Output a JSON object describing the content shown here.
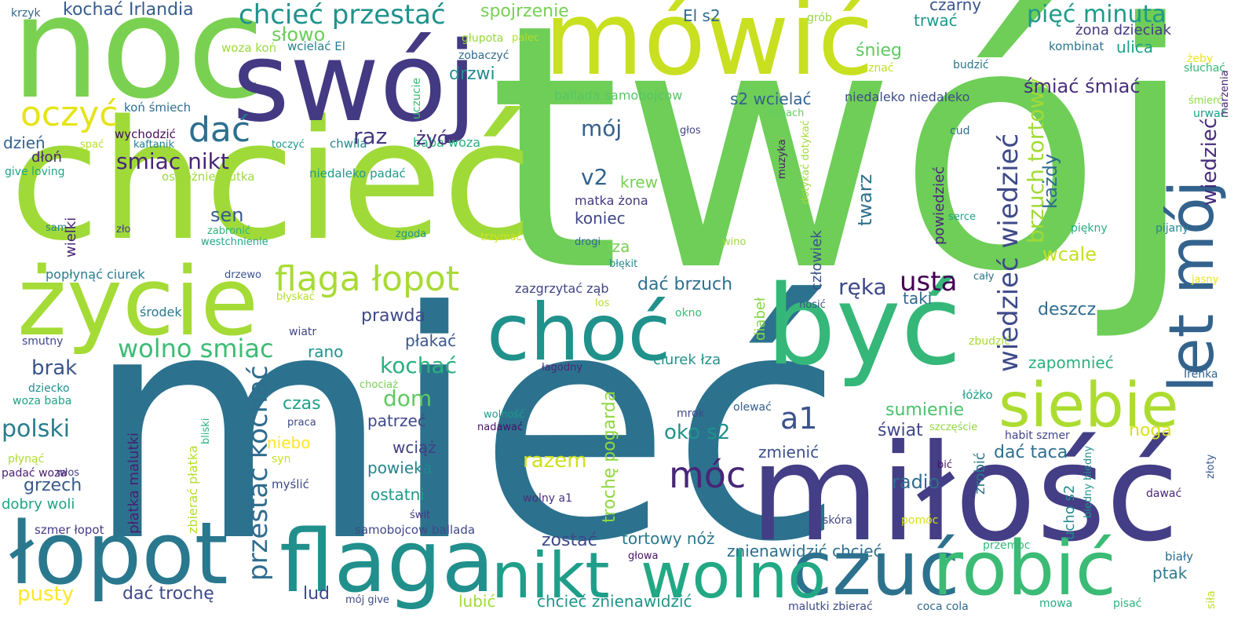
{
  "words": [
    {
      "text": "twój",
      "color": "#6ece58"
    },
    {
      "text": "mieć",
      "color": "#2c728e"
    },
    {
      "text": "chcieć",
      "color": "#a0da39"
    },
    {
      "text": "miłość",
      "color": "#433e85"
    },
    {
      "text": "noc",
      "color": "#7ad151"
    },
    {
      "text": "swój",
      "color": "#443983"
    },
    {
      "text": "mówić",
      "color": "#c8e020"
    },
    {
      "text": "być",
      "color": "#35b779"
    },
    {
      "text": "życie",
      "color": "#a5db36"
    },
    {
      "text": "łopot",
      "color": "#2a788e"
    },
    {
      "text": "flaga",
      "color": "#21908d"
    },
    {
      "text": "choć",
      "color": "#21918c"
    },
    {
      "text": "czuć",
      "color": "#2c728e"
    },
    {
      "text": "robić",
      "color": "#3bbb75"
    },
    {
      "text": "nikt",
      "color": "#1f9e89"
    },
    {
      "text": "wolno",
      "color": "#22a884"
    },
    {
      "text": "siebie",
      "color": "#addc30"
    },
    {
      "text": "let mój",
      "color": "#33638d"
    },
    {
      "text": "flaga łopot",
      "color": "#a8db34"
    },
    {
      "text": "przestać kochać",
      "color": "#2f6c8e"
    },
    {
      "text": "oczyć",
      "color": "#e5e419"
    },
    {
      "text": "dać",
      "color": "#2d708e"
    },
    {
      "text": "wolno smiac",
      "color": "#3dbc74"
    },
    {
      "text": "wiedzieć wiedzieć",
      "color": "#3e4a89"
    },
    {
      "text": "brzuch tortowy",
      "color": "#a2da37"
    },
    {
      "text": "wiedzieć",
      "color": "#472d7b"
    },
    {
      "text": "pięć minuta",
      "color": "#1f9a8a"
    },
    {
      "text": "chcieć przestać",
      "color": "#20928c"
    },
    {
      "text": "a1",
      "color": "#3b528b"
    },
    {
      "text": "móc",
      "color": "#482677"
    },
    {
      "text": "usta",
      "color": "#440154"
    },
    {
      "text": "polski",
      "color": "#287d8e"
    },
    {
      "text": "kochać Irlandia",
      "color": "#365c8d"
    },
    {
      "text": "słowo",
      "color": "#6ccd5a"
    },
    {
      "text": "spojrzenie",
      "color": "#75d054"
    },
    {
      "text": "El s2",
      "color": "#30698e"
    },
    {
      "text": "grób",
      "color": "#95d840"
    },
    {
      "text": "krzyk",
      "color": "#31668e"
    },
    {
      "text": "czarny",
      "color": "#3a548c"
    },
    {
      "text": "trwać",
      "color": "#1f988b"
    },
    {
      "text": "żona dzieciak",
      "color": "#453882"
    },
    {
      "text": "głupota",
      "color": "#95d840"
    },
    {
      "text": "palec",
      "color": "#b0dd2f"
    },
    {
      "text": "woza koń",
      "color": "#9bd93c"
    },
    {
      "text": "wcielać El",
      "color": "#27808e"
    },
    {
      "text": "zobaczyć",
      "color": "#306a8e"
    },
    {
      "text": "kombinat",
      "color": "#2c738e"
    },
    {
      "text": "żeby",
      "color": "#eae51a"
    },
    {
      "text": "ulica",
      "color": "#1fa088"
    },
    {
      "text": "śnieg",
      "color": "#5ec962"
    },
    {
      "text": "drzwi",
      "color": "#228c8d"
    },
    {
      "text": "budzić",
      "color": "#2a768e"
    },
    {
      "text": "słuchać",
      "color": "#35b779"
    },
    {
      "text": "marzenia",
      "color": "#482173"
    },
    {
      "text": "znać",
      "color": "#c2df23"
    },
    {
      "text": "uczucie",
      "color": "#3bbb75"
    },
    {
      "text": "koń śmiech",
      "color": "#2e6e8e"
    },
    {
      "text": "ballada samobojcow",
      "color": "#56c667"
    },
    {
      "text": "s2 wcielać",
      "color": "#33628d"
    },
    {
      "text": "niedaleko niedaleko",
      "color": "#3e4c8a"
    },
    {
      "text": "śmiać śmiać",
      "color": "#472f7d"
    },
    {
      "text": "śmierć",
      "color": "#90d743"
    },
    {
      "text": "zapach",
      "color": "#63cb5f"
    },
    {
      "text": "urwać",
      "color": "#1e9c89"
    },
    {
      "text": "głos",
      "color": "#404588"
    },
    {
      "text": "wychodzić",
      "color": "#460b5e"
    },
    {
      "text": "kaftanik",
      "color": "#26818e"
    },
    {
      "text": "dzień",
      "color": "#33628d"
    },
    {
      "text": "spać",
      "color": "#b8de29"
    },
    {
      "text": "toczyć",
      "color": "#1f968b"
    },
    {
      "text": "chwila",
      "color": "#25858e"
    },
    {
      "text": "baba woza",
      "color": "#29af7f"
    },
    {
      "text": "dłoń",
      "color": "#482878"
    },
    {
      "text": "smiac nikt",
      "color": "#482475"
    },
    {
      "text": "raz",
      "color": "#453882"
    },
    {
      "text": "żyć",
      "color": "#46327e"
    },
    {
      "text": "mój",
      "color": "#355f8d"
    },
    {
      "text": "v2",
      "color": "#33638d"
    },
    {
      "text": "muzyka",
      "color": "#48186a"
    },
    {
      "text": "cud",
      "color": "#2e6f8e"
    },
    {
      "text": "każdy",
      "color": "#2f6b8e"
    },
    {
      "text": "give loving",
      "color": "#20a486"
    },
    {
      "text": "ostrożnie trutka",
      "color": "#9dd93b"
    },
    {
      "text": "niedaleko padać",
      "color": "#1f998a"
    },
    {
      "text": "krew",
      "color": "#77d153"
    },
    {
      "text": "sen",
      "color": "#365c8d"
    },
    {
      "text": "matka żona",
      "color": "#443a83"
    },
    {
      "text": "twarz",
      "color": "#2d718e"
    },
    {
      "text": "dotykać dotykać",
      "color": "#a0da39"
    },
    {
      "text": "sam",
      "color": "#26828e"
    },
    {
      "text": "zło",
      "color": "#443b84"
    },
    {
      "text": "zabronić",
      "color": "#2db27d"
    },
    {
      "text": "westchnienie",
      "color": "#21a685"
    },
    {
      "text": "zgoda",
      "color": "#1f948c"
    },
    {
      "text": "trzymać",
      "color": "#d2e21b"
    },
    {
      "text": "drogi",
      "color": "#31678e"
    },
    {
      "text": "wino",
      "color": "#9bd93c"
    },
    {
      "text": "serce",
      "color": "#1fa088"
    },
    {
      "text": "piękny",
      "color": "#27ad81"
    },
    {
      "text": "pijany",
      "color": "#25848e"
    },
    {
      "text": "koniec",
      "color": "#3f4788"
    },
    {
      "text": "powiedzieć",
      "color": "#482878"
    },
    {
      "text": "wcale",
      "color": "#c5e021"
    },
    {
      "text": "wielki",
      "color": "#482374"
    },
    {
      "text": "popłynąć ciurek",
      "color": "#287c8e"
    },
    {
      "text": "łza",
      "color": "#77d153"
    },
    {
      "text": "człowiek",
      "color": "#3b528b"
    },
    {
      "text": "błękit",
      "color": "#238a8d"
    },
    {
      "text": "cały",
      "color": "#2c728e"
    },
    {
      "text": "jasny",
      "color": "#e8e419"
    },
    {
      "text": "drzewo",
      "color": "#3b528b"
    },
    {
      "text": "błyskać",
      "color": "#b8de29"
    },
    {
      "text": "zazgrzytać ząb",
      "color": "#404588"
    },
    {
      "text": "dać brzuch",
      "color": "#2d708e"
    },
    {
      "text": "ręka",
      "color": "#3e4989"
    },
    {
      "text": "deszcz",
      "color": "#2e6d8e"
    },
    {
      "text": "taki",
      "color": "#31688e"
    },
    {
      "text": "los",
      "color": "#b5de2b"
    },
    {
      "text": "nosić",
      "color": "#3c508b"
    },
    {
      "text": "środek",
      "color": "#2a778e"
    },
    {
      "text": "prawda",
      "color": "#3e4a89"
    },
    {
      "text": "smutny",
      "color": "#404588"
    },
    {
      "text": "wiatr",
      "color": "#414487"
    },
    {
      "text": "rano",
      "color": "#20928c"
    },
    {
      "text": "płakać",
      "color": "#39568c"
    },
    {
      "text": "okno",
      "color": "#3bbb75"
    },
    {
      "text": "diabeł",
      "color": "#86d549"
    },
    {
      "text": "ciurek łza",
      "color": "#21918c"
    },
    {
      "text": "zbudzić",
      "color": "#a8db34"
    },
    {
      "text": "łagodny",
      "color": "#482878"
    },
    {
      "text": "Irenka",
      "color": "#33628d"
    },
    {
      "text": "brak",
      "color": "#39558c"
    },
    {
      "text": "kochać",
      "color": "#2ab07f"
    },
    {
      "text": "trochę pogarda",
      "color": "#90d743"
    },
    {
      "text": "zapomnieć",
      "color": "#2bb07f"
    },
    {
      "text": "dziecko",
      "color": "#228d8d"
    },
    {
      "text": "chociaż",
      "color": "#75d054"
    },
    {
      "text": "woza baba",
      "color": "#1fa188"
    },
    {
      "text": "dom",
      "color": "#5ec962"
    },
    {
      "text": "łóżko",
      "color": "#1f9e89"
    },
    {
      "text": "czas",
      "color": "#1fa188"
    },
    {
      "text": "olewać",
      "color": "#34608d"
    },
    {
      "text": "płatka malutki",
      "color": "#481f70"
    },
    {
      "text": "bliski",
      "color": "#2db27d"
    },
    {
      "text": "wolność",
      "color": "#1f998a"
    },
    {
      "text": "mrok",
      "color": "#3e4a89"
    },
    {
      "text": "sumienie",
      "color": "#4ac16d"
    },
    {
      "text": "świat",
      "color": "#3f4788"
    },
    {
      "text": "noga",
      "color": "#d8e219"
    },
    {
      "text": "oko s2",
      "color": "#20928c"
    },
    {
      "text": "patrzeć",
      "color": "#3f4889"
    },
    {
      "text": "nadawać",
      "color": "#471164"
    },
    {
      "text": "szczęście",
      "color": "#90d743"
    },
    {
      "text": "habit szmer",
      "color": "#414487"
    },
    {
      "text": "praca",
      "color": "#3e4989"
    },
    {
      "text": "niebo",
      "color": "#fde725"
    },
    {
      "text": "syn",
      "color": "#c8e020"
    },
    {
      "text": "wciąż",
      "color": "#433e85"
    },
    {
      "text": "powieka",
      "color": "#25848e"
    },
    {
      "text": "razem",
      "color": "#cde11d"
    },
    {
      "text": "zmienić",
      "color": "#3c4f8a"
    },
    {
      "text": "dać taca",
      "color": "#2e6e8e"
    },
    {
      "text": "płynąć",
      "color": "#addc30"
    },
    {
      "text": "włos",
      "color": "#424086"
    },
    {
      "text": "padać woza",
      "color": "#481d6f"
    },
    {
      "text": "grzech",
      "color": "#375a8c"
    },
    {
      "text": "zbierać płatka",
      "color": "#b5de2b"
    },
    {
      "text": "myślić",
      "color": "#3e4a89"
    },
    {
      "text": "radio",
      "color": "#2f6b8e"
    },
    {
      "text": "bić",
      "color": "#471365"
    },
    {
      "text": "zrobić",
      "color": "#2c738e"
    },
    {
      "text": "biedny biedny",
      "color": "#21918c"
    },
    {
      "text": "złoty",
      "color": "#39568c"
    },
    {
      "text": "dobry woli",
      "color": "#20a386"
    },
    {
      "text": "ostatni",
      "color": "#1f988b"
    },
    {
      "text": "wolny a1",
      "color": "#46327e"
    },
    {
      "text": "dawać",
      "color": "#482878"
    },
    {
      "text": "szmer łopot",
      "color": "#443b84"
    },
    {
      "text": "samobojcow ballada",
      "color": "#3f4889"
    },
    {
      "text": "świt",
      "color": "#453781"
    },
    {
      "text": "skóra",
      "color": "#404688"
    },
    {
      "text": "pomóc",
      "color": "#d8e219"
    },
    {
      "text": "ucho s2",
      "color": "#23898e"
    },
    {
      "text": "zostać",
      "color": "#3e4a89"
    },
    {
      "text": "tortowy nóż",
      "color": "#2a788e"
    },
    {
      "text": "przemoc",
      "color": "#35b779"
    },
    {
      "text": "znienawidzić chcieć",
      "color": "#2e6f8e"
    },
    {
      "text": "biały",
      "color": "#2e6d8e"
    },
    {
      "text": "głowa",
      "color": "#481467"
    },
    {
      "text": "ptak",
      "color": "#287c8e"
    },
    {
      "text": "siła",
      "color": "#c2df23"
    },
    {
      "text": "dać trochę",
      "color": "#3e4a89"
    },
    {
      "text": "lud",
      "color": "#3e4a89"
    },
    {
      "text": "mój give",
      "color": "#3e4a89"
    },
    {
      "text": "pusty",
      "color": "#fde725"
    },
    {
      "text": "lubić",
      "color": "#9fda3a"
    },
    {
      "text": "chcieć znienawidzić",
      "color": "#1f958b"
    },
    {
      "text": "malutki zbierać",
      "color": "#3e4a89"
    },
    {
      "text": "coca cola",
      "color": "#30698e"
    },
    {
      "text": "mowa",
      "color": "#27ad81"
    },
    {
      "text": "pisać",
      "color": "#2db27d"
    }
  ]
}
